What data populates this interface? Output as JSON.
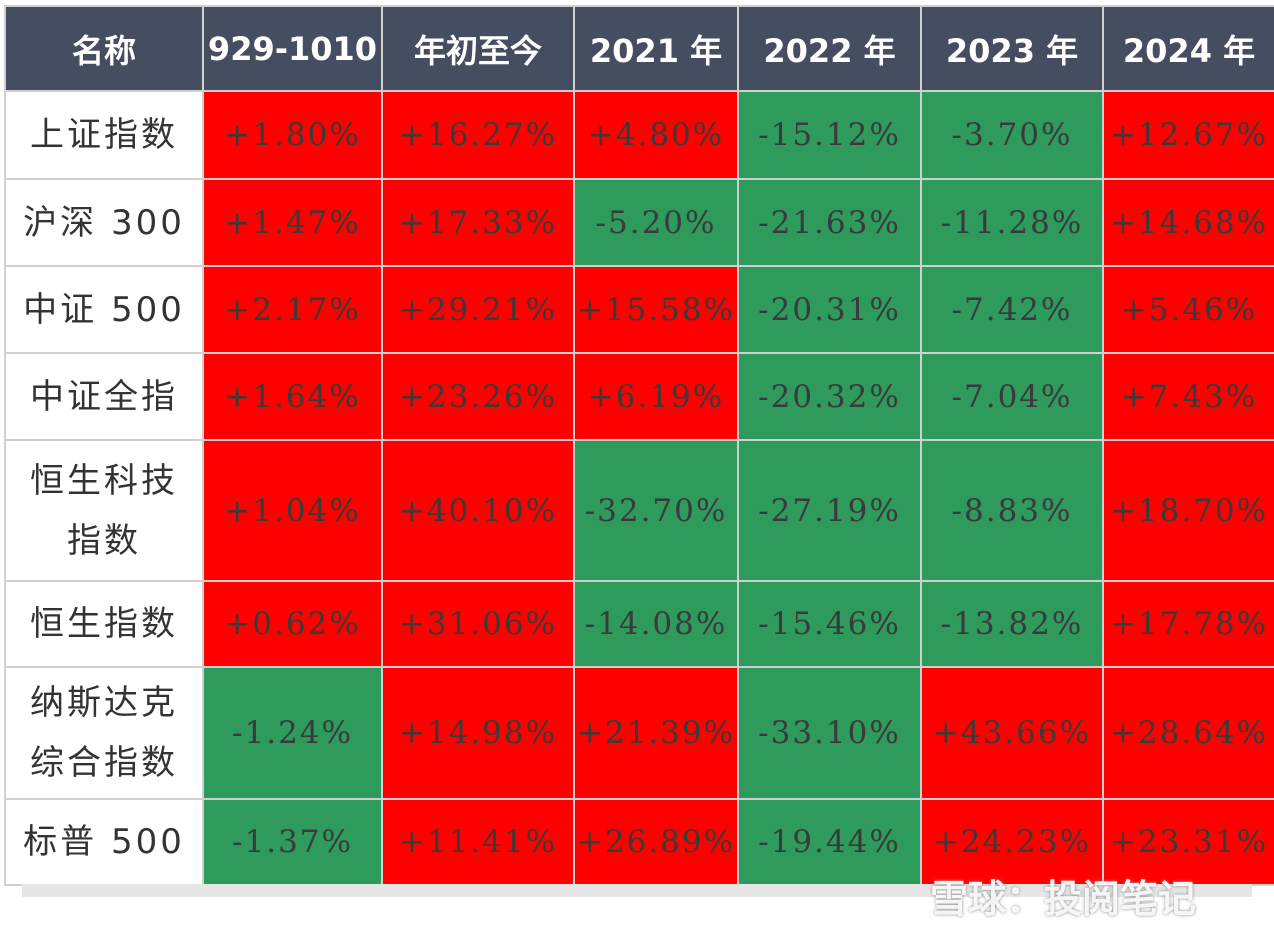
{
  "table": {
    "header": [
      "名称",
      "929-1010",
      "年初至今",
      "2021 年",
      "2022 年",
      "2023 年",
      "2024 年"
    ],
    "rows": [
      [
        "上证指数",
        "+1.80%",
        "+16.27%",
        "+4.80%",
        "-15.12%",
        "-3.70%",
        "+12.67%"
      ],
      [
        "沪深 300",
        "+1.47%",
        "+17.33%",
        "-5.20%",
        "-21.63%",
        "-11.28%",
        "+14.68%"
      ],
      [
        "中证 500",
        "+2.17%",
        "+29.21%",
        "+15.58%",
        "-20.31%",
        "-7.42%",
        "+5.46%"
      ],
      [
        "中证全指",
        "+1.64%",
        "+23.26%",
        "+6.19%",
        "-20.32%",
        "-7.04%",
        "+7.43%"
      ],
      [
        "恒生科技指数",
        "+1.04%",
        "+40.10%",
        "-32.70%",
        "-27.19%",
        "-8.83%",
        "+18.70%"
      ],
      [
        "恒生指数",
        "+0.62%",
        "+31.06%",
        "-14.08%",
        "-15.46%",
        "-13.82%",
        "+17.78%"
      ],
      [
        "纳斯达克综合指数",
        "-1.24%",
        "+14.98%",
        "+21.39%",
        "-33.10%",
        "+43.66%",
        "+28.64%"
      ],
      [
        "标普 500",
        "-1.37%",
        "+11.41%",
        "+26.89%",
        "-19.44%",
        "+24.23%",
        "+23.31%"
      ]
    ],
    "colors": {
      "positive": "#ff0000",
      "negative": "#2e9a5c"
    }
  },
  "watermark": "雪球：投阅笔记"
}
